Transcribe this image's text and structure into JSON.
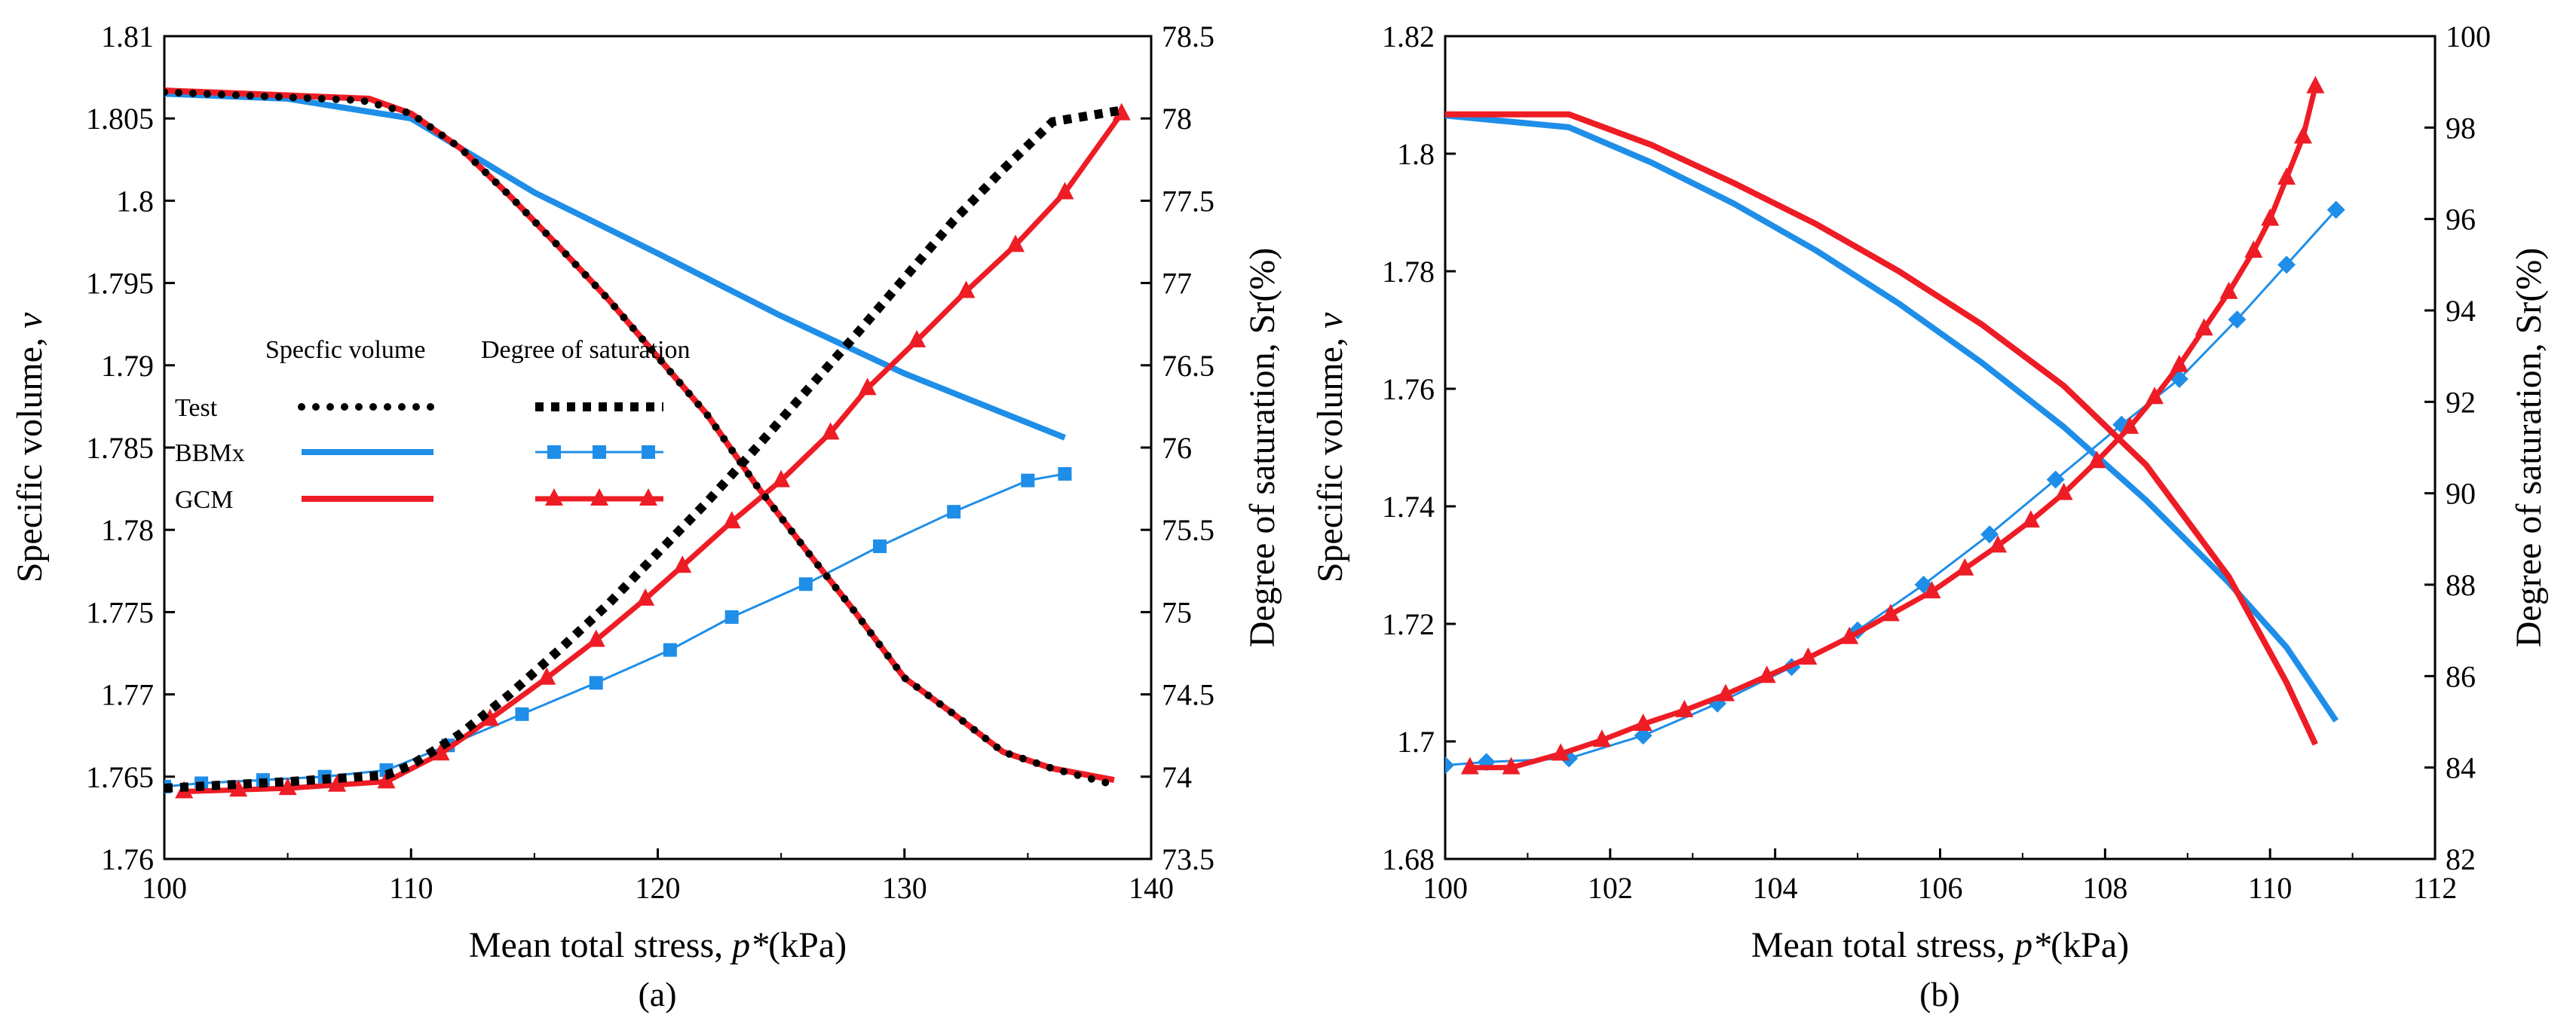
{
  "chart_data": [
    {
      "type": "line",
      "caption": "(a)",
      "xlabel": "Mean total stress, p*(kPa)",
      "xlabel_parts": [
        "Mean total stress, ",
        "p*",
        "(kPa)"
      ],
      "ylabel": "Specific volume, v",
      "ylabel_parts": [
        "Specific volume, ",
        "v"
      ],
      "y2label": "Degree of saturation, Sr(%)",
      "xlim": [
        100,
        140
      ],
      "ylim": [
        1.76,
        1.81
      ],
      "y2lim": [
        73.5,
        78.5
      ],
      "xticks": [
        "100",
        "110",
        "120",
        "130",
        "140"
      ],
      "yticks": [
        "1.76",
        "1.765",
        "1.77",
        "1.775",
        "1.78",
        "1.785",
        "1.79",
        "1.795",
        "1.8",
        "1.805",
        "1.81"
      ],
      "y2ticks": [
        "73.5",
        "74",
        "74.5",
        "75",
        "75.5",
        "76",
        "76.5",
        "77",
        "77.5",
        "78",
        "78.5"
      ],
      "legend": {
        "header_v": "Specfic volume",
        "header_sr": "Degree of saturation",
        "rows": [
          "Test",
          "BBMx",
          "GCM"
        ]
      },
      "series": [
        {
          "name": "Test",
          "quantity": "Specific volume",
          "style": "dotted",
          "color": "#000000",
          "x": [
            100,
            108,
            110,
            112,
            114,
            116,
            118,
            120,
            122,
            124,
            126,
            128,
            130,
            132,
            134,
            136,
            138.5
          ],
          "values": [
            1.8066,
            1.8061,
            1.8053,
            1.8032,
            1.8003,
            1.7972,
            1.794,
            1.7905,
            1.787,
            1.7827,
            1.7788,
            1.775,
            1.771,
            1.7688,
            1.7665,
            1.7655,
            1.7645
          ]
        },
        {
          "name": "Test",
          "quantity": "Degree of saturation",
          "style": "dashed",
          "color": "#000000",
          "x": [
            100,
            105,
            109,
            110,
            112,
            114,
            116,
            118,
            120,
            122,
            124,
            126,
            128,
            130,
            132,
            134,
            136,
            138.8
          ],
          "values": [
            73.93,
            73.97,
            74.01,
            74.07,
            74.26,
            74.5,
            74.77,
            75.05,
            75.36,
            75.67,
            76.0,
            76.34,
            76.68,
            77.03,
            77.38,
            77.69,
            77.98,
            78.05
          ]
        },
        {
          "name": "BBMx",
          "quantity": "Specific volume",
          "style": "solid",
          "color": "#1f8ee8",
          "x": [
            100,
            105,
            110,
            115,
            120,
            125,
            130,
            136.5
          ],
          "values": [
            1.8065,
            1.8062,
            1.805,
            1.8005,
            1.7968,
            1.793,
            1.7895,
            1.7856
          ]
        },
        {
          "name": "BBMx",
          "quantity": "Degree of saturation",
          "style": "square-markers",
          "color": "#1f8ee8",
          "x": [
            100,
            101.5,
            104,
            106.5,
            109,
            111.5,
            114.5,
            117.5,
            120.5,
            123,
            126,
            129,
            132,
            135,
            136.5
          ],
          "values": [
            73.94,
            73.96,
            73.98,
            74.0,
            74.04,
            74.19,
            74.38,
            74.57,
            74.77,
            74.97,
            75.17,
            75.4,
            75.61,
            75.8,
            75.84
          ]
        },
        {
          "name": "GCM",
          "quantity": "Specific volume",
          "style": "solid",
          "color": "#ee1c25",
          "x": [
            100,
            108.3,
            110,
            112,
            114,
            116,
            118,
            120,
            122,
            124,
            126,
            128,
            130,
            132,
            134,
            136,
            138.5
          ],
          "values": [
            1.8067,
            1.8062,
            1.8053,
            1.8032,
            1.8003,
            1.7972,
            1.794,
            1.7905,
            1.787,
            1.7827,
            1.7788,
            1.775,
            1.771,
            1.7688,
            1.7665,
            1.7655,
            1.7648
          ]
        },
        {
          "name": "GCM",
          "quantity": "Degree of saturation",
          "style": "triangle-markers",
          "color": "#ee1c25",
          "x": [
            100.8,
            103,
            105,
            107,
            109,
            111.2,
            113.2,
            115.5,
            117.5,
            119.5,
            121,
            123,
            125,
            127,
            128.5,
            130.5,
            132.5,
            134.5,
            136.5,
            138.8
          ],
          "values": [
            73.91,
            73.92,
            73.93,
            73.95,
            73.97,
            74.14,
            74.35,
            74.6,
            74.83,
            75.08,
            75.28,
            75.55,
            75.8,
            76.09,
            76.36,
            76.65,
            76.95,
            77.23,
            77.55,
            78.03
          ]
        }
      ]
    },
    {
      "type": "line",
      "caption": "(b)",
      "xlabel": "Mean total stress, p*(kPa)",
      "xlabel_parts": [
        "Mean total stress, ",
        "p*",
        "(kPa)"
      ],
      "ylabel": "Specific volume, v",
      "ylabel_parts": [
        "Specific volume, ",
        "v"
      ],
      "y2label": "Degree of saturation, Sr(%)",
      "xlim": [
        100,
        112
      ],
      "ylim": [
        1.68,
        1.82
      ],
      "y2lim": [
        82,
        100
      ],
      "xticks": [
        "100",
        "102",
        "104",
        "106",
        "108",
        "110",
        "112"
      ],
      "yticks": [
        "1.68",
        "1.7",
        "1.72",
        "1.74",
        "1.76",
        "1.78",
        "1.8",
        "1.82"
      ],
      "y2ticks": [
        "82",
        "84",
        "86",
        "88",
        "90",
        "92",
        "94",
        "96",
        "98",
        "100"
      ],
      "series": [
        {
          "name": "BBMx",
          "quantity": "Specific volume",
          "style": "solid",
          "color": "#1f8ee8",
          "x": [
            100,
            101.5,
            102.5,
            103.5,
            104.5,
            105.5,
            106.5,
            107.5,
            108.5,
            109.5,
            110.2,
            110.8
          ],
          "values": [
            1.8065,
            1.8045,
            1.7985,
            1.7915,
            1.7835,
            1.7745,
            1.7645,
            1.7535,
            1.741,
            1.727,
            1.716,
            1.7035
          ]
        },
        {
          "name": "BBMx",
          "quantity": "Degree of saturation",
          "style": "diamond-markers",
          "color": "#1f8ee8",
          "x": [
            100,
            100.5,
            101.5,
            102.4,
            103.3,
            104.2,
            105,
            105.8,
            106.6,
            107.4,
            108.2,
            108.9,
            109.6,
            110.2,
            110.8
          ],
          "values": [
            84.05,
            84.12,
            84.2,
            84.7,
            85.4,
            86.2,
            87.0,
            88.0,
            89.1,
            90.3,
            91.5,
            92.5,
            93.8,
            95.0,
            96.2
          ]
        },
        {
          "name": "GCM",
          "quantity": "Specific volume",
          "style": "solid",
          "color": "#ee1c25",
          "x": [
            100,
            101.5,
            102.5,
            103.5,
            104.5,
            105.5,
            106.5,
            107.5,
            108.5,
            109.5,
            110.2,
            110.55
          ],
          "values": [
            1.8067,
            1.8067,
            1.8015,
            1.795,
            1.788,
            1.78,
            1.771,
            1.7605,
            1.747,
            1.728,
            1.71,
            1.6995
          ]
        },
        {
          "name": "GCM",
          "quantity": "Degree of saturation",
          "style": "triangle-markers",
          "color": "#ee1c25",
          "x": [
            100.3,
            100.8,
            101.4,
            101.9,
            102.4,
            102.9,
            103.4,
            103.9,
            104.4,
            104.9,
            105.4,
            105.9,
            106.3,
            106.7,
            107.1,
            107.5,
            107.9,
            108.3,
            108.6,
            108.9,
            109.2,
            109.5,
            109.8,
            110.0,
            110.2,
            110.4,
            110.55
          ],
          "values": [
            84.0,
            84.0,
            84.3,
            84.6,
            84.95,
            85.25,
            85.6,
            86.0,
            86.4,
            86.85,
            87.35,
            87.85,
            88.35,
            88.85,
            89.4,
            90.0,
            90.7,
            91.45,
            92.1,
            92.8,
            93.6,
            94.4,
            95.3,
            96.0,
            96.9,
            97.8,
            98.9
          ]
        }
      ]
    }
  ]
}
